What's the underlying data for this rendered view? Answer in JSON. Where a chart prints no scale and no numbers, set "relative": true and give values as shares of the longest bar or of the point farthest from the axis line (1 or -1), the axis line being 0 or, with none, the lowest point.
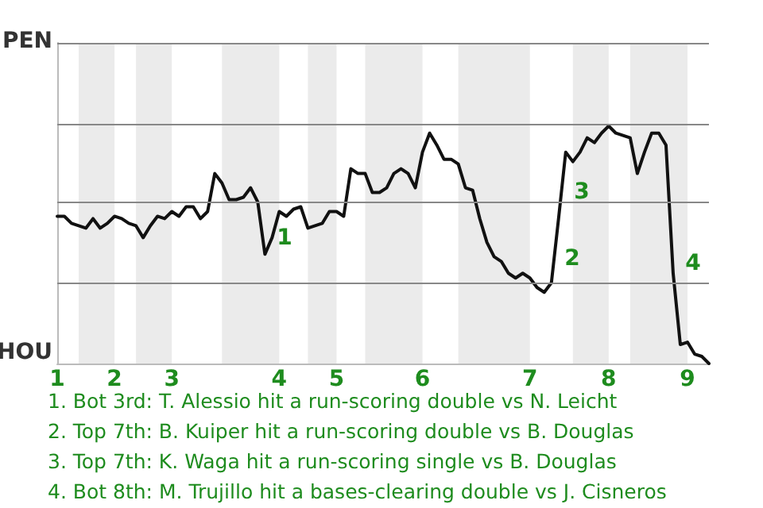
{
  "chart_data": {
    "type": "line",
    "relative": true,
    "categories": [
      "1",
      null,
      null,
      null,
      null,
      null,
      null,
      null,
      "2",
      null,
      null,
      null,
      null,
      null,
      null,
      null,
      "3",
      null,
      null,
      null,
      null,
      null,
      null,
      null,
      null,
      null,
      null,
      null,
      null,
      null,
      null,
      "4",
      null,
      null,
      null,
      null,
      null,
      null,
      null,
      "5",
      null,
      null,
      null,
      null,
      null,
      null,
      null,
      null,
      null,
      null,
      null,
      "6",
      null,
      null,
      null,
      null,
      null,
      null,
      null,
      null,
      null,
      null,
      null,
      null,
      null,
      null,
      "7",
      null,
      null,
      null,
      null,
      null,
      null,
      null,
      null,
      null,
      null,
      "8",
      null,
      null,
      null,
      null,
      null,
      null,
      null,
      null,
      null,
      null,
      "9",
      null,
      null,
      null
    ],
    "marker": "none",
    "line_style": "solid",
    "series": [
      {
        "color": "#111111",
        "values": [
          0.62,
          0.62,
          0.59,
          0.58,
          0.57,
          0.61,
          0.57,
          0.59,
          0.62,
          0.61,
          0.59,
          0.58,
          0.53,
          0.58,
          0.62,
          0.61,
          0.64,
          0.62,
          0.66,
          0.66,
          0.61,
          0.64,
          0.8,
          0.76,
          0.69,
          0.69,
          0.7,
          0.74,
          0.68,
          0.46,
          0.53,
          0.64,
          0.62,
          0.65,
          0.66,
          0.57,
          0.58,
          0.59,
          0.64,
          0.64,
          0.62,
          0.82,
          0.8,
          0.8,
          0.72,
          0.72,
          0.74,
          0.8,
          0.82,
          0.8,
          0.74,
          0.89,
          0.97,
          0.92,
          0.86,
          0.86,
          0.84,
          0.74,
          0.73,
          0.61,
          0.51,
          0.45,
          0.43,
          0.38,
          0.36,
          0.38,
          0.36,
          0.32,
          0.3,
          0.34,
          0.61,
          0.89,
          0.85,
          0.89,
          0.95,
          0.93,
          0.97,
          1,
          0.97,
          0.96,
          0.95,
          0.8,
          0.89,
          0.97,
          0.97,
          0.92,
          0.38,
          0.08,
          0.09,
          0.04,
          0.03,
          0
        ]
      }
    ],
    "ref_lines": [
      {
        "axis": "y",
        "value": 0.34,
        "color": "#888888"
      },
      {
        "axis": "y",
        "value": 0.68,
        "color": "#888888"
      },
      {
        "axis": "y",
        "value": 1.01,
        "color": "#888888"
      },
      {
        "axis": "y",
        "value": 1.35,
        "color": "#888888"
      }
    ],
    "annotations": [
      "PEN",
      "HOU",
      "1",
      "2",
      "3",
      "4",
      "1. Bot 3rd: T. Alessio hit a run-scoring double vs N. Leicht",
      "2. Top 7th: B. Kuiper hit a run-scoring double vs B. Douglas",
      "3. Top 7th: K. Waga hit a run-scoring single vs B. Douglas",
      "4. Bot 8th: M. Trujillo hit a bases-clearing double vs J. Cisneros"
    ]
  }
}
